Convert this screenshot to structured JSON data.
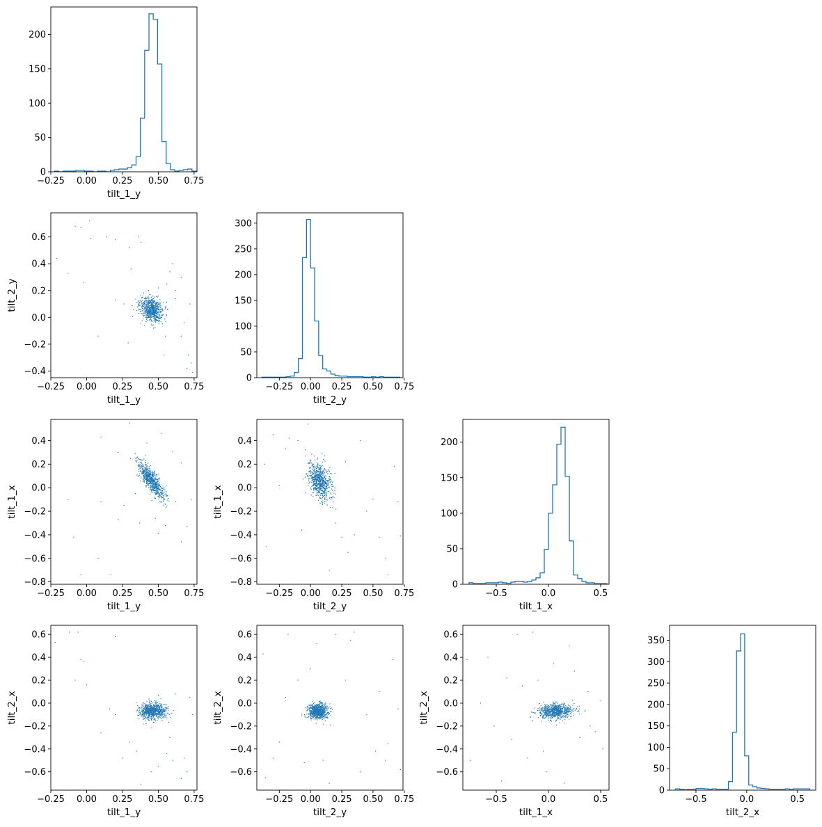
{
  "figure": {
    "type": "corner_plot",
    "color": "#1f77b4",
    "variables": [
      "tilt_1_y",
      "tilt_2_y",
      "tilt_1_x",
      "tilt_2_x"
    ]
  },
  "chart_data": [
    {
      "type": "histogram",
      "row": 0,
      "col": 0,
      "xlabel": "tilt_1_y",
      "ylabel": "",
      "xlim": [
        -0.25,
        0.77
      ],
      "ylim": [
        0,
        240
      ],
      "xticks": [
        -0.25,
        0.0,
        0.25,
        0.5,
        0.75
      ],
      "xticklabels": [
        "−0.25",
        "0.00",
        "0.25",
        "0.50",
        "0.75"
      ],
      "yticks": [
        0,
        50,
        100,
        150,
        200
      ],
      "yticklabels": [
        "0",
        "50",
        "100",
        "150",
        "200"
      ],
      "bin_start": -0.225,
      "bin_width": 0.03,
      "counts": [
        1,
        0,
        1,
        1,
        1,
        2,
        2,
        1,
        1,
        0,
        1,
        1,
        0,
        2,
        3,
        4,
        4,
        6,
        10,
        22,
        78,
        177,
        230,
        222,
        157,
        44,
        12,
        3,
        1,
        2,
        3,
        4,
        1
      ]
    },
    {
      "type": "scatter",
      "row": 1,
      "col": 0,
      "xlabel": "tilt_1_y",
      "ylabel": "tilt_2_y",
      "xlim": [
        -0.25,
        0.77
      ],
      "ylim": [
        -0.45,
        0.78
      ],
      "xticks": [
        -0.25,
        0.0,
        0.25,
        0.5,
        0.75
      ],
      "xticklabels": [
        "−0.25",
        "0.00",
        "0.25",
        "0.50",
        "0.75"
      ],
      "yticks": [
        -0.4,
        -0.2,
        0.0,
        0.2,
        0.4,
        0.6
      ],
      "yticklabels": [
        "−0.4",
        "−0.2",
        "0.0",
        "0.2",
        "0.4",
        "0.6"
      ],
      "cluster": {
        "n": 700,
        "x_mean": 0.45,
        "y_mean": 0.06,
        "x_sd": 0.04,
        "y_sd": 0.045,
        "corr": -0.3
      },
      "outliers": [
        [
          -0.21,
          0.44
        ],
        [
          -0.08,
          0.68
        ],
        [
          -0.04,
          0.67
        ],
        [
          -0.02,
          0.26
        ],
        [
          0.03,
          0.59
        ],
        [
          0.02,
          0.72
        ],
        [
          -0.13,
          0.33
        ],
        [
          0.08,
          -0.14
        ],
        [
          0.14,
          0.6
        ],
        [
          0.2,
          0.58
        ],
        [
          0.3,
          0.52
        ],
        [
          0.31,
          0.36
        ],
        [
          0.29,
          -0.19
        ],
        [
          0.2,
          0.13
        ],
        [
          0.26,
          0.1
        ],
        [
          0.38,
          0.56
        ],
        [
          0.36,
          0.6
        ],
        [
          0.5,
          0.22
        ],
        [
          0.56,
          0.25
        ],
        [
          0.62,
          0.14
        ],
        [
          0.62,
          0.2
        ],
        [
          0.55,
          -0.14
        ],
        [
          0.54,
          -0.28
        ],
        [
          0.6,
          0.4
        ],
        [
          0.58,
          0.34
        ],
        [
          0.66,
          -0.14
        ],
        [
          0.68,
          -0.04
        ],
        [
          0.7,
          -0.38
        ],
        [
          0.71,
          -0.28
        ],
        [
          0.73,
          -0.34
        ],
        [
          0.72,
          0.1
        ],
        [
          0.74,
          -0.41
        ],
        [
          0.45,
          -0.05
        ],
        [
          0.66,
          0.3
        ]
      ]
    },
    {
      "type": "histogram",
      "row": 1,
      "col": 1,
      "xlabel": "tilt_2_y",
      "ylabel": "",
      "xlim": [
        -0.43,
        0.74
      ],
      "ylim": [
        0,
        320
      ],
      "xticks": [
        -0.25,
        0.0,
        0.25,
        0.5,
        0.75
      ],
      "xticklabels": [
        "−0.25",
        "0.00",
        "0.25",
        "0.50",
        "0.75"
      ],
      "yticks": [
        0,
        50,
        100,
        150,
        200,
        250,
        300
      ],
      "yticklabels": [
        "0",
        "50",
        "100",
        "150",
        "200",
        "250",
        "300"
      ],
      "bin_start": -0.39,
      "bin_width": 0.0325,
      "counts": [
        1,
        1,
        1,
        1,
        1,
        1,
        2,
        3,
        10,
        37,
        233,
        307,
        213,
        110,
        43,
        17,
        13,
        7,
        4,
        3,
        3,
        2,
        2,
        2,
        2,
        1,
        1,
        2,
        1,
        2,
        1,
        1,
        1,
        1
      ]
    },
    {
      "type": "scatter",
      "row": 2,
      "col": 0,
      "xlabel": "tilt_1_y",
      "ylabel": "tilt_1_x",
      "xlim": [
        -0.25,
        0.77
      ],
      "ylim": [
        -0.82,
        0.58
      ],
      "xticks": [
        -0.25,
        0.0,
        0.25,
        0.5,
        0.75
      ],
      "xticklabels": [
        "−0.25",
        "0.00",
        "0.25",
        "0.50",
        "0.75"
      ],
      "yticks": [
        -0.8,
        -0.6,
        -0.4,
        -0.2,
        0.0,
        0.2,
        0.4
      ],
      "yticklabels": [
        "−0.8",
        "−0.6",
        "−0.4",
        "−0.2",
        "0.0",
        "0.2",
        "0.4"
      ],
      "cluster": {
        "n": 700,
        "x_mean": 0.45,
        "y_mean": 0.06,
        "x_sd": 0.045,
        "y_sd": 0.08,
        "corr": -0.8
      },
      "outliers": [
        [
          -0.13,
          -0.1
        ],
        [
          -0.09,
          -0.42
        ],
        [
          -0.04,
          -0.74
        ],
        [
          0.1,
          -0.12
        ],
        [
          0.1,
          0.43
        ],
        [
          0.08,
          -0.6
        ],
        [
          0.17,
          -0.74
        ],
        [
          0.22,
          0.3
        ],
        [
          0.3,
          0.55
        ],
        [
          0.26,
          -0.15
        ],
        [
          0.34,
          -0.05
        ],
        [
          0.37,
          -0.3
        ],
        [
          0.48,
          -0.26
        ],
        [
          0.5,
          -0.39
        ],
        [
          0.55,
          -0.32
        ],
        [
          0.52,
          0.46
        ],
        [
          0.6,
          0.31
        ],
        [
          0.62,
          -0.12
        ],
        [
          0.66,
          -0.46
        ],
        [
          0.7,
          -0.33
        ],
        [
          0.73,
          -0.1
        ],
        [
          0.66,
          0.21
        ],
        [
          0.22,
          -0.27
        ],
        [
          0.42,
          0.38
        ]
      ]
    },
    {
      "type": "scatter",
      "row": 2,
      "col": 1,
      "xlabel": "tilt_2_y",
      "ylabel": "tilt_1_x",
      "xlim": [
        -0.43,
        0.74
      ],
      "ylim": [
        -0.82,
        0.58
      ],
      "xticks": [
        -0.25,
        0.0,
        0.25,
        0.5,
        0.75
      ],
      "xticklabels": [
        "−0.25",
        "0.00",
        "0.25",
        "0.50",
        "0.75"
      ],
      "yticks": [
        -0.8,
        -0.6,
        -0.4,
        -0.2,
        0.0,
        0.2,
        0.4
      ],
      "yticklabels": [
        "−0.8",
        "−0.6",
        "−0.4",
        "−0.2",
        "0.0",
        "0.2",
        "0.4"
      ],
      "cluster": {
        "n": 700,
        "x_mean": 0.07,
        "y_mean": 0.06,
        "x_sd": 0.045,
        "y_sd": 0.08,
        "corr": -0.35
      },
      "outliers": [
        [
          -0.37,
          0.2
        ],
        [
          -0.3,
          0.45
        ],
        [
          -0.2,
          0.33
        ],
        [
          -0.17,
          0.42
        ],
        [
          -0.1,
          0.4
        ],
        [
          -0.25,
          0.02
        ],
        [
          -0.07,
          -0.36
        ],
        [
          -0.02,
          0.54
        ],
        [
          0.2,
          -0.3
        ],
        [
          0.25,
          -0.42
        ],
        [
          0.3,
          -0.55
        ],
        [
          0.35,
          -0.4
        ],
        [
          0.4,
          0.4
        ],
        [
          0.45,
          -0.2
        ],
        [
          0.5,
          -0.1
        ],
        [
          0.55,
          -0.42
        ],
        [
          0.6,
          -0.6
        ],
        [
          0.62,
          -0.74
        ],
        [
          0.67,
          0.18
        ],
        [
          0.7,
          -0.12
        ],
        [
          0.72,
          -0.41
        ],
        [
          0.28,
          0.22
        ],
        [
          0.15,
          -0.7
        ],
        [
          -0.35,
          -0.5
        ]
      ]
    },
    {
      "type": "histogram",
      "row": 2,
      "col": 2,
      "xlabel": "tilt_1_x",
      "ylabel": "",
      "xlim": [
        -0.82,
        0.58
      ],
      "ylim": [
        0,
        232
      ],
      "xticks": [
        -0.5,
        0.0,
        0.5
      ],
      "xticklabels": [
        "−0.5",
        "0.0",
        "0.5"
      ],
      "yticks": [
        0,
        50,
        100,
        150,
        200
      ],
      "yticklabels": [
        "0",
        "50",
        "100",
        "150",
        "200"
      ],
      "bin_start": -0.76,
      "bin_width": 0.04,
      "counts": [
        2,
        1,
        1,
        1,
        2,
        2,
        2,
        3,
        2,
        1,
        3,
        4,
        4,
        3,
        4,
        6,
        9,
        16,
        49,
        100,
        140,
        197,
        221,
        152,
        61,
        13,
        8,
        4,
        2,
        2,
        1,
        1,
        1
      ]
    },
    {
      "type": "scatter",
      "row": 3,
      "col": 0,
      "xlabel": "tilt_1_y",
      "ylabel": "tilt_2_x",
      "xlim": [
        -0.25,
        0.77
      ],
      "ylim": [
        -0.76,
        0.68
      ],
      "xticks": [
        -0.25,
        0.0,
        0.25,
        0.5,
        0.75
      ],
      "xticklabels": [
        "−0.25",
        "0.00",
        "0.25",
        "0.50",
        "0.75"
      ],
      "yticks": [
        -0.6,
        -0.4,
        -0.2,
        0.0,
        0.2,
        0.4,
        0.6
      ],
      "yticklabels": [
        "−0.6",
        "−0.4",
        "−0.2",
        "0.0",
        "0.2",
        "0.4",
        "0.6"
      ],
      "cluster": {
        "n": 700,
        "x_mean": 0.46,
        "y_mean": -0.07,
        "x_sd": 0.045,
        "y_sd": 0.035,
        "corr": 0.0
      },
      "outliers": [
        [
          -0.22,
          0.53
        ],
        [
          -0.12,
          0.62
        ],
        [
          -0.06,
          0.62
        ],
        [
          -0.08,
          0.2
        ],
        [
          -0.04,
          0.38
        ],
        [
          -0.02,
          0.36
        ],
        [
          0.0,
          0.16
        ],
        [
          0.1,
          -0.26
        ],
        [
          0.2,
          0.58
        ],
        [
          0.16,
          -0.05
        ],
        [
          0.2,
          -0.1
        ],
        [
          0.25,
          -0.48
        ],
        [
          0.35,
          -0.42
        ],
        [
          0.3,
          -0.34
        ],
        [
          0.38,
          -0.71
        ],
        [
          0.45,
          -0.6
        ],
        [
          0.5,
          -0.55
        ],
        [
          0.56,
          -0.44
        ],
        [
          0.6,
          -0.5
        ],
        [
          0.62,
          0.08
        ],
        [
          0.68,
          -0.48
        ],
        [
          0.7,
          -0.6
        ],
        [
          0.66,
          -0.66
        ],
        [
          0.72,
          0.05
        ],
        [
          0.74,
          -0.1
        ],
        [
          0.58,
          -0.3
        ]
      ]
    },
    {
      "type": "scatter",
      "row": 3,
      "col": 1,
      "xlabel": "tilt_2_y",
      "ylabel": "tilt_2_x",
      "xlim": [
        -0.43,
        0.74
      ],
      "ylim": [
        -0.76,
        0.68
      ],
      "xticks": [
        -0.25,
        0.0,
        0.25,
        0.5,
        0.75
      ],
      "xticklabels": [
        "−0.25",
        "0.00",
        "0.25",
        "0.50",
        "0.75"
      ],
      "yticks": [
        -0.6,
        -0.4,
        -0.2,
        0.0,
        0.2,
        0.4,
        0.6
      ],
      "yticklabels": [
        "−0.6",
        "−0.4",
        "−0.2",
        "0.0",
        "0.2",
        "0.4",
        "0.6"
      ],
      "cluster": {
        "n": 700,
        "x_mean": 0.06,
        "y_mean": -0.07,
        "x_sd": 0.04,
        "y_sd": 0.035,
        "corr": 0.0
      },
      "outliers": [
        [
          -0.38,
          0.43
        ],
        [
          -0.36,
          -0.65
        ],
        [
          -0.3,
          -0.48
        ],
        [
          -0.25,
          -0.34
        ],
        [
          -0.2,
          0.05
        ],
        [
          -0.18,
          0.6
        ],
        [
          -0.1,
          0.2
        ],
        [
          -0.05,
          -0.52
        ],
        [
          0.0,
          0.3
        ],
        [
          0.05,
          0.52
        ],
        [
          0.1,
          -0.5
        ],
        [
          0.15,
          -0.7
        ],
        [
          0.2,
          0.6
        ],
        [
          0.28,
          0.2
        ],
        [
          0.32,
          0.55
        ],
        [
          0.4,
          -0.6
        ],
        [
          0.45,
          -0.1
        ],
        [
          0.52,
          -0.42
        ],
        [
          0.55,
          0.1
        ],
        [
          0.6,
          -0.5
        ],
        [
          0.62,
          -0.35
        ],
        [
          0.66,
          0.38
        ],
        [
          0.7,
          -0.05
        ],
        [
          0.72,
          -0.58
        ],
        [
          0.35,
          0.62
        ]
      ]
    },
    {
      "type": "scatter",
      "row": 3,
      "col": 2,
      "xlabel": "tilt_1_x",
      "ylabel": "tilt_2_x",
      "xlim": [
        -0.82,
        0.58
      ],
      "ylim": [
        -0.76,
        0.68
      ],
      "xticks": [
        -0.5,
        0.0,
        0.5
      ],
      "xticklabels": [
        "−0.5",
        "0.0",
        "0.5"
      ],
      "yticks": [
        -0.6,
        -0.4,
        -0.2,
        0.0,
        0.2,
        0.4,
        0.6
      ],
      "yticklabels": [
        "−0.6",
        "−0.4",
        "−0.2",
        "0.0",
        "0.2",
        "0.4",
        "0.6"
      ],
      "cluster": {
        "n": 700,
        "x_mean": 0.07,
        "y_mean": -0.07,
        "x_sd": 0.08,
        "y_sd": 0.035,
        "corr": 0.1
      },
      "outliers": [
        [
          -0.78,
          0.38
        ],
        [
          -0.75,
          -0.5
        ],
        [
          -0.58,
          0.4
        ],
        [
          -0.52,
          -0.2
        ],
        [
          -0.45,
          -0.68
        ],
        [
          -0.4,
          0.22
        ],
        [
          -0.3,
          0.6
        ],
        [
          -0.25,
          0.15
        ],
        [
          -0.2,
          -0.48
        ],
        [
          -0.15,
          0.62
        ],
        [
          -0.1,
          0.2
        ],
        [
          -0.05,
          -0.42
        ],
        [
          -0.02,
          -0.6
        ],
        [
          0.05,
          0.35
        ],
        [
          0.15,
          -0.7
        ],
        [
          0.2,
          0.5
        ],
        [
          0.25,
          0.28
        ],
        [
          0.3,
          -0.3
        ],
        [
          0.4,
          -0.2
        ],
        [
          0.45,
          -0.25
        ],
        [
          0.5,
          0.02
        ],
        [
          0.52,
          -0.4
        ],
        [
          -0.65,
          0.0
        ],
        [
          0.38,
          0.1
        ],
        [
          -0.35,
          -0.32
        ]
      ]
    },
    {
      "type": "histogram",
      "row": 3,
      "col": 3,
      "xlabel": "tilt_2_x",
      "ylabel": "",
      "xlim": [
        -0.76,
        0.68
      ],
      "ylim": [
        0,
        385
      ],
      "xticks": [
        -0.5,
        0.0,
        0.5
      ],
      "xticklabels": [
        "−0.5",
        "0.0",
        "0.5"
      ],
      "yticks": [
        0,
        50,
        100,
        150,
        200,
        250,
        300,
        350
      ],
      "yticklabels": [
        "0",
        "50",
        "100",
        "150",
        "200",
        "250",
        "300",
        "350"
      ],
      "bin_start": -0.7,
      "bin_width": 0.04,
      "counts": [
        3,
        2,
        1,
        2,
        2,
        4,
        4,
        3,
        2,
        3,
        2,
        2,
        2,
        20,
        135,
        325,
        365,
        80,
        12,
        8,
        5,
        4,
        3,
        2,
        2,
        2,
        2,
        3,
        2,
        3,
        3,
        3,
        3
      ]
    }
  ]
}
